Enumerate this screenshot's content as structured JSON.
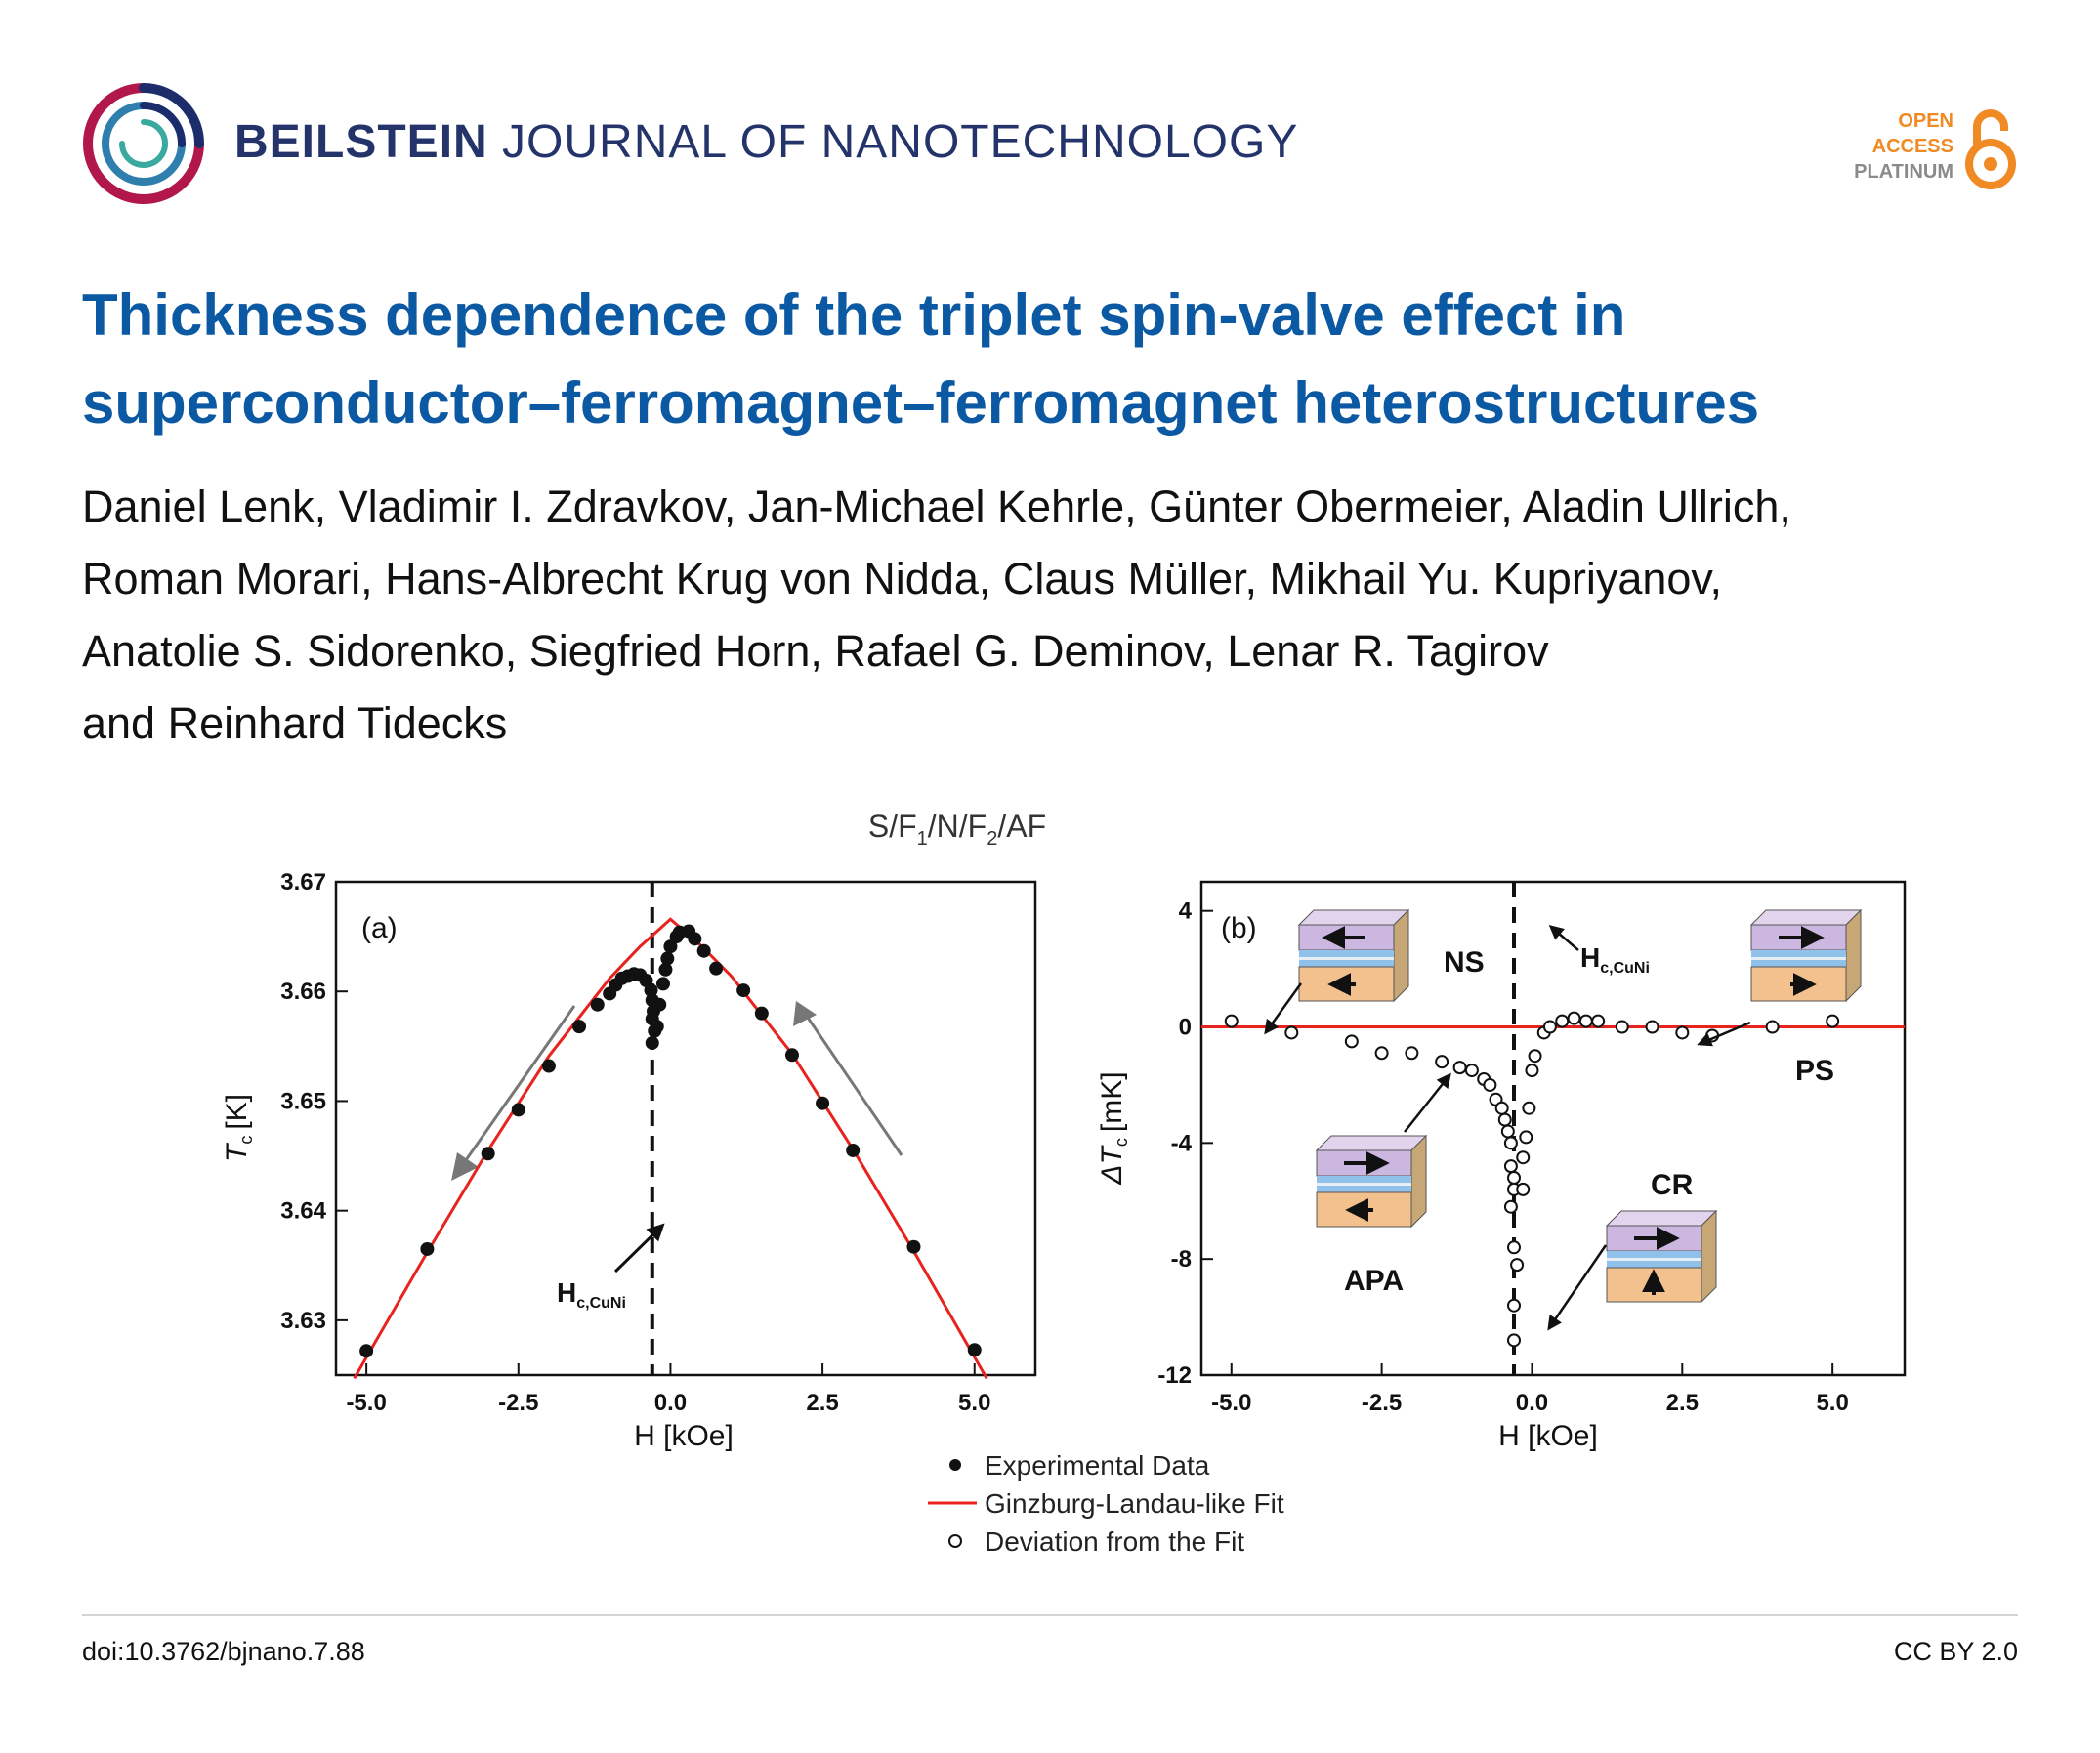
{
  "header": {
    "journal_bold": "BEILSTEIN",
    "journal_rest": "JOURNAL OF NANOTECHNOLOGY",
    "oa_line1": "OPEN",
    "oa_line2": "ACCESS",
    "oa_line3": "PLATINUM"
  },
  "article": {
    "title": "Thickness dependence of the triplet spin-valve effect in superconductor–ferromagnet–ferromagnet heterostructures",
    "authors": [
      "Daniel Lenk, Vladimir I. Zdravkov, Jan-Michael Kehrle, Günter Obermeier, Aladin Ullrich,",
      "Roman Morari, Hans-Albrecht Krug von Nidda, Claus Müller, Mikhail Yu. Kupriyanov,",
      "Anatolie S. Sidorenko, Siegfried Horn, Rafael G. Deminov, Lenar R. Tagirov",
      "and Reinhard Tidecks"
    ]
  },
  "figure": {
    "main_title": "S/F",
    "main_title_sub1": "1",
    "main_title_mid": "/N/F",
    "main_title_sub2": "2",
    "main_title_end": "/AF",
    "legend": [
      "Experimental Data",
      "Ginzburg-Landau-like Fit",
      "Deviation from the Fit"
    ],
    "annotation_prefix": "H",
    "annotation_sub": "c,CuNi",
    "states": [
      "NS",
      "PS",
      "CR",
      "APA"
    ]
  },
  "chart_data": [
    {
      "type": "scatter",
      "panel_label": "(a)",
      "xlabel": "H [kOe]",
      "ylabel": "T",
      "ylabel_sub": "c",
      "ylabel_unit": "[K]",
      "xlim": [
        -5.5,
        6.0
      ],
      "ylim": [
        3.625,
        3.67
      ],
      "xticks": [
        -5.0,
        -2.5,
        0.0,
        2.5,
        5.0
      ],
      "xtick_labels": [
        "-5.0",
        "-2.5",
        "0.0",
        "2.5",
        "5.0"
      ],
      "yticks": [
        3.63,
        3.64,
        3.65,
        3.66,
        3.67
      ],
      "ytick_labels": [
        "3.63",
        "3.64",
        "3.65",
        "3.66",
        "3.67"
      ],
      "vline_x": -0.3,
      "series": [
        {
          "name": "Experimental Data",
          "points": [
            [
              -5.0,
              3.6272
            ],
            [
              -4.0,
              3.6365
            ],
            [
              -3.0,
              3.6452
            ],
            [
              -2.5,
              3.6492
            ],
            [
              -2.0,
              3.6532
            ],
            [
              -1.5,
              3.6568
            ],
            [
              -1.2,
              3.6588
            ],
            [
              -1.0,
              3.6598
            ],
            [
              -0.9,
              3.6606
            ],
            [
              -0.8,
              3.6612
            ],
            [
              -0.7,
              3.6614
            ],
            [
              -0.6,
              3.6616
            ],
            [
              -0.5,
              3.6615
            ],
            [
              -0.4,
              3.661
            ],
            [
              -0.32,
              3.6601
            ],
            [
              -0.3,
              3.6592
            ],
            [
              -0.28,
              3.6582
            ],
            [
              -0.3,
              3.6575
            ],
            [
              -0.26,
              3.6564
            ],
            [
              -0.3,
              3.6553
            ],
            [
              -0.22,
              3.6568
            ],
            [
              -0.18,
              3.6588
            ],
            [
              -0.12,
              3.6607
            ],
            [
              -0.08,
              3.662
            ],
            [
              -0.05,
              3.663
            ],
            [
              0.0,
              3.6641
            ],
            [
              0.1,
              3.665
            ],
            [
              0.15,
              3.6654
            ],
            [
              0.3,
              3.6655
            ],
            [
              0.4,
              3.6648
            ],
            [
              0.55,
              3.6637
            ],
            [
              0.75,
              3.6621
            ],
            [
              1.2,
              3.6601
            ],
            [
              1.5,
              3.658
            ],
            [
              2.0,
              3.6542
            ],
            [
              2.5,
              3.6498
            ],
            [
              3.0,
              3.6455
            ],
            [
              4.0,
              3.6367
            ],
            [
              5.0,
              3.6273
            ]
          ]
        },
        {
          "name": "Ginzburg-Landau-like Fit",
          "line": [
            [
              -5.2,
              3.6247
            ],
            [
              -4.0,
              3.6362
            ],
            [
              -3.0,
              3.6455
            ],
            [
              -2.0,
              3.6541
            ],
            [
              -1.0,
              3.6612
            ],
            [
              -0.5,
              3.6641
            ],
            [
              0.0,
              3.6666
            ],
            [
              0.5,
              3.6642
            ],
            [
              1.0,
              3.6614
            ],
            [
              2.0,
              3.6543
            ],
            [
              3.0,
              3.6456
            ],
            [
              4.0,
              3.6363
            ],
            [
              5.2,
              3.6247
            ]
          ]
        }
      ]
    },
    {
      "type": "scatter",
      "panel_label": "(b)",
      "xlabel": "H [kOe]",
      "ylabel": "ΔT",
      "ylabel_sub": "c",
      "ylabel_unit": "[mK]",
      "xlim": [
        -5.5,
        6.2
      ],
      "ylim": [
        -12,
        5
      ],
      "xticks": [
        -5.0,
        -2.5,
        0.0,
        2.5,
        5.0
      ],
      "xtick_labels": [
        "-5.0",
        "-2.5",
        "0.0",
        "2.5",
        "5.0"
      ],
      "yticks": [
        -12,
        -8,
        -4,
        0,
        4
      ],
      "ytick_labels": [
        "-12",
        "-8",
        "-4",
        "0",
        "4"
      ],
      "vline_x": -0.3,
      "hline_y": 0,
      "series": [
        {
          "name": "Deviation from the Fit",
          "points": [
            [
              -5.0,
              0.2
            ],
            [
              -4.0,
              -0.2
            ],
            [
              -3.0,
              -0.5
            ],
            [
              -2.5,
              -0.9
            ],
            [
              -2.0,
              -0.9
            ],
            [
              -1.5,
              -1.2
            ],
            [
              -1.2,
              -1.4
            ],
            [
              -1.0,
              -1.5
            ],
            [
              -0.8,
              -1.8
            ],
            [
              -0.7,
              -2.0
            ],
            [
              -0.6,
              -2.5
            ],
            [
              -0.5,
              -2.8
            ],
            [
              -0.45,
              -3.2
            ],
            [
              -0.4,
              -3.6
            ],
            [
              -0.35,
              -4.0
            ],
            [
              -0.35,
              -4.8
            ],
            [
              -0.3,
              -5.2
            ],
            [
              -0.3,
              -5.6
            ],
            [
              -0.35,
              -6.2
            ],
            [
              -0.3,
              -7.6
            ],
            [
              -0.25,
              -8.2
            ],
            [
              -0.3,
              -9.6
            ],
            [
              -0.3,
              -10.8
            ],
            [
              -0.15,
              -5.6
            ],
            [
              -0.15,
              -4.5
            ],
            [
              -0.1,
              -3.8
            ],
            [
              -0.05,
              -2.8
            ],
            [
              0.0,
              -1.5
            ],
            [
              0.05,
              -1.0
            ],
            [
              0.2,
              -0.2
            ],
            [
              0.3,
              0.0
            ],
            [
              0.5,
              0.2
            ],
            [
              0.7,
              0.3
            ],
            [
              0.9,
              0.2
            ],
            [
              1.1,
              0.2
            ],
            [
              1.5,
              0.0
            ],
            [
              2.0,
              0.0
            ],
            [
              2.5,
              -0.2
            ],
            [
              3.0,
              -0.3
            ],
            [
              4.0,
              0.0
            ],
            [
              5.0,
              0.2
            ]
          ]
        }
      ]
    }
  ],
  "footer": {
    "doi": "doi:10.3762/bjnano.7.88",
    "license": "CC BY 2.0"
  }
}
